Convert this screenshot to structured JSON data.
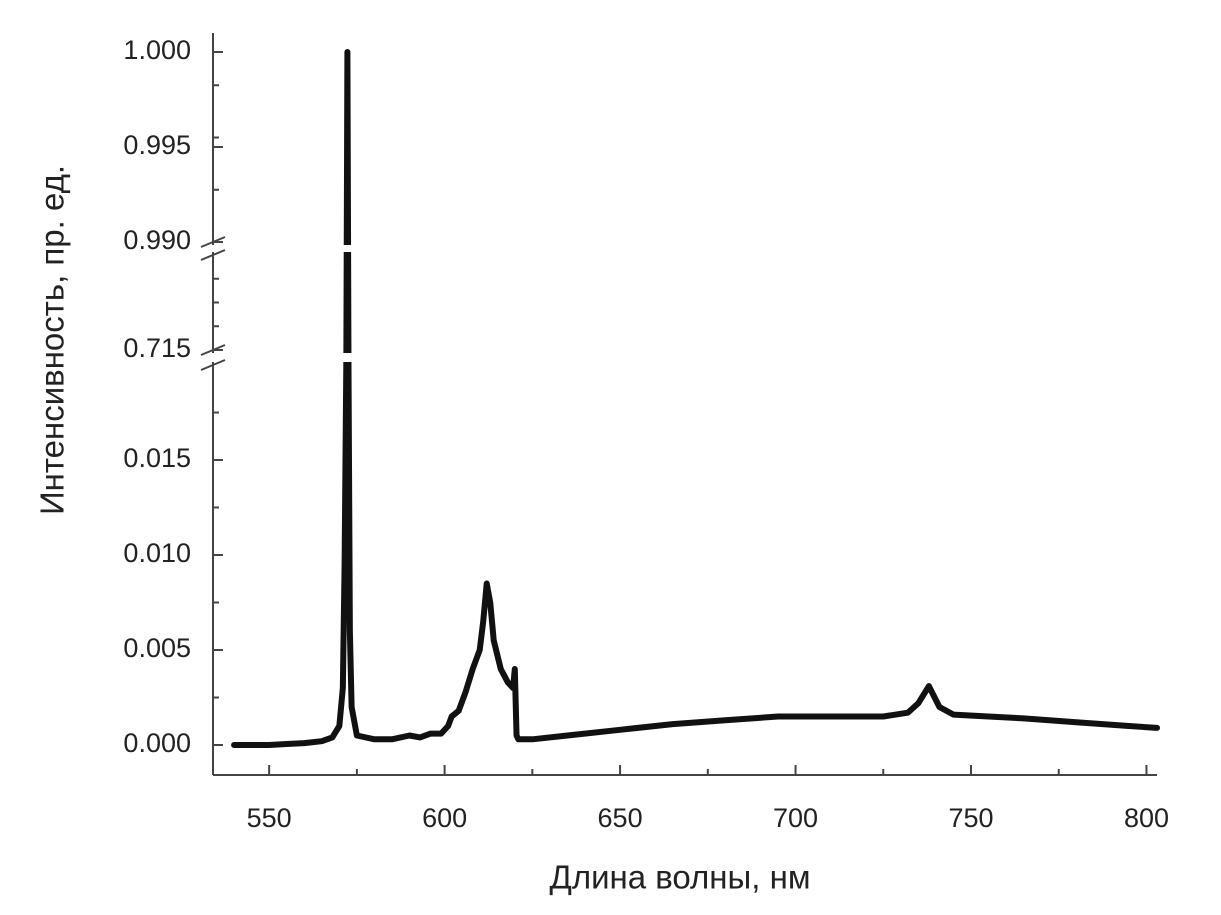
{
  "chart_data": {
    "type": "line",
    "x_label": "Длина волны, нм",
    "y_label": "Интенсивность, пр. ед.",
    "xlim": [
      534,
      803
    ],
    "xticks": [
      550,
      600,
      650,
      700,
      750,
      800
    ],
    "y_segments": [
      {
        "ylim": [
          0,
          0.02
        ],
        "yticks": [
          {
            "value": 0,
            "label": "0.000"
          },
          0.005,
          {
            "value": 0.01,
            "label": "0.010"
          },
          0.015
        ]
      },
      {
        "ylim": [
          0.715,
          0.99
        ],
        "yticks": [
          0.715
        ]
      },
      {
        "ylim": [
          0.99,
          1.001
        ],
        "yticks": [
          {
            "value": 0.99,
            "label": "0.990"
          },
          0.995,
          {
            "value": 1,
            "label": "1.000"
          }
        ]
      }
    ],
    "series": [
      {
        "color": "#111111",
        "x": [
          540,
          545,
          550,
          555,
          560,
          565,
          568,
          570,
          571,
          571.5,
          572,
          572.3,
          572.6,
          573,
          573.5,
          575,
          580,
          585,
          590,
          593,
          596,
          599,
          601,
          602,
          604,
          606,
          608,
          610,
          611,
          612,
          613,
          614,
          616,
          618,
          619.5,
          620,
          620.5,
          621,
          625,
          635,
          650,
          665,
          680,
          695,
          710,
          725,
          732,
          735,
          738,
          741,
          745,
          755,
          765,
          780,
          795,
          803
        ],
        "values": [
          0,
          0,
          0,
          5e-05,
          0.0001,
          0.0002,
          0.0004,
          0.001,
          0.003,
          0.0095,
          0.3,
          1.0,
          0.3,
          0.006,
          0.002,
          0.0005,
          0.0003,
          0.0003,
          0.0005,
          0.0004,
          0.0006,
          0.0006,
          0.001,
          0.0015,
          0.0018,
          0.0028,
          0.004,
          0.005,
          0.0065,
          0.0085,
          0.0075,
          0.0055,
          0.004,
          0.0033,
          0.003,
          0.004,
          0.0005,
          0.0003,
          0.0003,
          0.0005,
          0.0008,
          0.0011,
          0.0013,
          0.0015,
          0.0015,
          0.0015,
          0.0017,
          0.0022,
          0.0031,
          0.002,
          0.0016,
          0.0015,
          0.0014,
          0.0012,
          0.001,
          0.0009
        ]
      }
    ]
  }
}
